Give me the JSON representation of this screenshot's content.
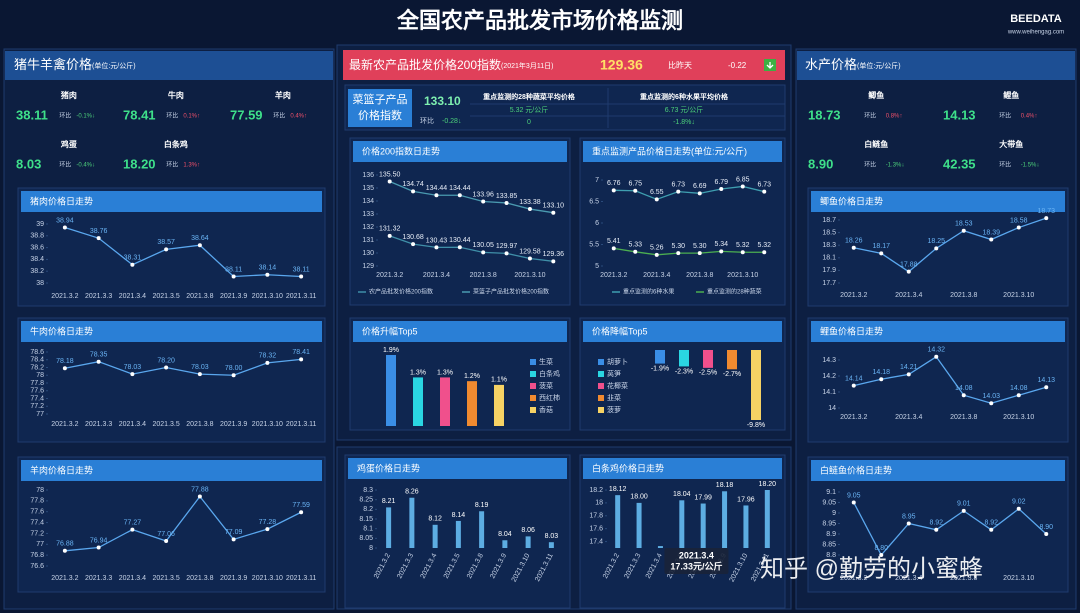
{
  "header": {
    "title": "全国农产品批发市场价格监测",
    "logo": "BEEDATA",
    "url": "www.weihengag.com"
  },
  "left": {
    "title": "猪牛羊禽价格",
    "unit": "(单位:元/公斤)",
    "change_label": "环比",
    "items": [
      {
        "name": "猪肉",
        "value": "38.11",
        "change": "-0.1%↓"
      },
      {
        "name": "牛肉",
        "value": "78.41",
        "change": "0.1%↑"
      },
      {
        "name": "羊肉",
        "value": "77.59",
        "change": "0.4%↑"
      },
      {
        "name": "鸡蛋",
        "value": "8.03",
        "change": "-0.4%↓"
      },
      {
        "name": "白条鸡",
        "value": "18.20",
        "change": "1.3%↑"
      }
    ]
  },
  "center": {
    "title": "最新农产品批发价格200指数",
    "date": "(2021年3月11日)",
    "value": "129.36",
    "compare_label": "比昨天",
    "compare": "-0.22",
    "basket": {
      "label": [
        "菜篮子产品",
        "价格指数"
      ],
      "value": "133.10",
      "change_label": "环比",
      "change": "-0.28↓"
    },
    "veg": {
      "label": "重点监测的28种蔬菜平均价格",
      "value": "5.32 元/公斤",
      "change": "0"
    },
    "fruit": {
      "label": "重点监测的6种水果平均价格",
      "value": "6.73 元/公斤",
      "change": "-1.8%↓"
    }
  },
  "right": {
    "title": "水产价格",
    "unit": "(单位:元/公斤)",
    "change_label": "环比",
    "items": [
      {
        "name": "鲫鱼",
        "value": "18.73",
        "change": "0.8%↑"
      },
      {
        "name": "鲤鱼",
        "value": "14.13",
        "change": "0.4%↑"
      },
      {
        "name": "白鲢鱼",
        "value": "8.90",
        "change": "-1.3%↓"
      },
      {
        "name": "大带鱼",
        "value": "42.35",
        "change": "-1.5%↓"
      }
    ]
  },
  "watermark": "知乎 @勤劳的小蜜蜂",
  "chart_data": [
    {
      "type": "line",
      "title": "猪肉价格日走势",
      "categories": [
        "2021.3.2",
        "2021.3.3",
        "2021.3.4",
        "2021.3.5",
        "2021.3.8",
        "2021.3.9",
        "2021.3.10",
        "2021.3.11"
      ],
      "series": [
        {
          "name": "猪肉",
          "color": "#5aa7ee",
          "values": [
            38.94,
            38.76,
            38.31,
            38.57,
            38.64,
            38.11,
            38.14,
            38.11
          ],
          "value_labels": [
            "38.94",
            "38.76",
            "38.31",
            "38.57",
            "38.64",
            "38.11",
            "38.14",
            "38.11"
          ]
        }
      ],
      "ylim": [
        38,
        39
      ],
      "yticks": [
        38,
        38.2,
        38.4,
        38.6,
        38.8,
        39
      ]
    },
    {
      "type": "line",
      "title": "牛肉价格日走势",
      "categories": [
        "2021.3.2",
        "2021.3.3",
        "2021.3.4",
        "2021.3.5",
        "2021.3.8",
        "2021.3.9",
        "2021.3.10",
        "2021.3.11"
      ],
      "series": [
        {
          "name": "牛肉",
          "color": "#5aa7ee",
          "values": [
            78.18,
            78.35,
            78.03,
            78.2,
            78.03,
            78.0,
            78.32,
            78.41
          ],
          "value_labels": [
            "78.18",
            "78.35",
            "78.03",
            "78.20",
            "78.03",
            "78.00",
            "78.32",
            "78.41"
          ]
        }
      ],
      "ylim": [
        77,
        78.6
      ],
      "yticks": [
        77,
        77.2,
        77.4,
        77.6,
        77.8,
        78,
        78.2,
        78.4,
        78.6
      ]
    },
    {
      "type": "line",
      "title": "羊肉价格日走势",
      "categories": [
        "2021.3.2",
        "2021.3.3",
        "2021.3.4",
        "2021.3.5",
        "2021.3.8",
        "2021.3.9",
        "2021.3.10",
        "2021.3.11"
      ],
      "series": [
        {
          "name": "羊肉",
          "color": "#5aa7ee",
          "values": [
            76.88,
            76.94,
            77.27,
            77.06,
            77.88,
            77.09,
            77.28,
            77.59
          ],
          "value_labels": [
            "76.88",
            "76.94",
            "77.27",
            "77.06",
            "77.88",
            "77.09",
            "77.28",
            "77.59"
          ]
        }
      ],
      "ylim": [
        76.6,
        78
      ],
      "yticks": [
        76.6,
        76.8,
        77,
        77.2,
        77.4,
        77.6,
        77.8,
        78
      ]
    },
    {
      "type": "line",
      "title": "价格200指数日走势",
      "categories": [
        "2021.3.2",
        null,
        "2021.3.4",
        null,
        "2021.3.8",
        null,
        "2021.3.10",
        null
      ],
      "series": [
        {
          "name": "农产品批发价格200指数",
          "color": "#3f8fa8",
          "values": [
            131.32,
            130.68,
            130.43,
            130.44,
            130.05,
            129.97,
            129.58,
            129.36
          ],
          "value_labels": [
            "131.32",
            "130.68",
            "130.43",
            "130.44",
            "130.05",
            "129.97",
            "129.58",
            "129.36"
          ]
        },
        {
          "name": "菜篮子产品批发价格200指数",
          "color": "#4a9ab0",
          "values": [
            135.5,
            134.74,
            134.44,
            134.44,
            133.96,
            133.85,
            133.38,
            133.1
          ],
          "value_labels": [
            "135.50",
            "134.74",
            "134.44",
            "134.44",
            "133.96",
            "133.85",
            "133.38",
            "133.10"
          ]
        }
      ],
      "ylim": [
        129,
        136
      ],
      "yticks": [
        129,
        130,
        131,
        132,
        133,
        134,
        135,
        136
      ]
    },
    {
      "type": "line",
      "title": "重点监测产品价格日走势(单位:元/公斤)",
      "categories": [
        "2021.3.2",
        null,
        "2021.3.4",
        null,
        "2021.3.8",
        null,
        "2021.3.10",
        null
      ],
      "series": [
        {
          "name": "重点监测的6种水果",
          "color": "#3f9fb0",
          "values": [
            6.76,
            6.75,
            6.55,
            6.73,
            6.69,
            6.79,
            6.85,
            6.73
          ],
          "value_labels": [
            "6.76",
            "6.75",
            "6.55",
            "6.73",
            "6.69",
            "6.79",
            "6.85",
            "6.73"
          ]
        },
        {
          "name": "重点监测的28种蔬菜",
          "color": "#4caf50",
          "values": [
            5.41,
            5.33,
            5.26,
            5.3,
            5.3,
            5.34,
            5.32,
            5.32
          ],
          "value_labels": [
            "5.41",
            "5.33",
            "5.26",
            "5.30",
            "5.30",
            "5.34",
            "5.32",
            "5.32"
          ]
        }
      ],
      "ylim": [
        5,
        7
      ],
      "yticks": [
        5,
        5.5,
        6,
        6.5,
        7
      ]
    },
    {
      "type": "bar",
      "title": "价格升幅Top5",
      "categories": [
        "生菜",
        "白条鸡",
        "菠菜",
        "西红柿",
        "香菇"
      ],
      "values": [
        1.9,
        1.3,
        1.3,
        1.2,
        1.1
      ],
      "value_labels": [
        "1.9%",
        "1.3%",
        "1.3%",
        "1.2%",
        "1.1%"
      ],
      "colors": [
        "#3a8ee6",
        "#2ad6e2",
        "#f0508c",
        "#f08a30",
        "#f6d264"
      ]
    },
    {
      "type": "bar",
      "title": "价格降幅Top5",
      "categories": [
        "胡萝卜",
        "莴笋",
        "花椰菜",
        "韭菜",
        "菠萝"
      ],
      "values": [
        -1.9,
        -2.3,
        -2.5,
        -2.7,
        -9.8
      ],
      "value_labels": [
        "-1.9%",
        "-2.3%",
        "-2.5%",
        "-2.7%",
        "-9.8%"
      ],
      "colors": [
        "#3a8ee6",
        "#2ad6e2",
        "#f0508c",
        "#f08a30",
        "#f6d264"
      ]
    },
    {
      "type": "bar",
      "title": "鸡蛋价格日走势",
      "categories": [
        "2021.3.2",
        "2021.3.3",
        "2021.3.4",
        "2021.3.5",
        "2021.3.8",
        "2021.3.9",
        "2021.3.10",
        "2021.3.11"
      ],
      "values": [
        8.21,
        8.26,
        8.12,
        8.14,
        8.19,
        8.04,
        8.06,
        8.03
      ],
      "value_labels": [
        "8.21",
        "8.26",
        "8.12",
        "8.14",
        "8.19",
        "8.04",
        "8.06",
        "8.03"
      ],
      "color": "#5dade2",
      "ylim": [
        8,
        8.3
      ],
      "yticks": [
        8,
        8.05,
        8.1,
        8.15,
        8.2,
        8.25,
        8.3
      ]
    },
    {
      "type": "bar",
      "title": "白条鸡价格日走势",
      "categories": [
        "2021.3.2",
        "2021.3.3",
        "2021.3.4",
        "2021.3.5",
        "2021.3.8",
        "2021.3.9",
        "2021.3.10",
        "2021.3.11"
      ],
      "values": [
        18.12,
        18.0,
        17.33,
        18.04,
        17.99,
        18.18,
        17.96,
        18.2
      ],
      "value_labels": [
        "18.12",
        "18.00",
        null,
        "18.04",
        "17.99",
        "18.18",
        "17.96",
        "18.20"
      ],
      "color": "#5dade2",
      "ylim": [
        17.3,
        18.2
      ],
      "yticks": [
        17.4,
        17.6,
        17.8,
        18,
        18.2
      ],
      "tooltip": {
        "title": "2021.3.4",
        "text": "17.33元/公斤"
      }
    },
    {
      "type": "line",
      "title": "鲫鱼价格日走势",
      "categories": [
        "2021.3.2",
        null,
        "2021.3.4",
        null,
        "2021.3.8",
        null,
        "2021.3.10",
        null
      ],
      "series": [
        {
          "name": "鲫鱼",
          "color": "#5aa7ee",
          "values": [
            18.26,
            18.17,
            17.88,
            18.25,
            18.53,
            18.39,
            18.58,
            18.73
          ],
          "value_labels": [
            "18.26",
            "18.17",
            "17.88",
            "18.25",
            "18.53",
            "18.39",
            "18.58",
            "18.73"
          ]
        }
      ],
      "ylim": [
        17.7,
        18.7
      ],
      "yticks": [
        17.7,
        17.9,
        18.1,
        18.3,
        18.5,
        18.7
      ]
    },
    {
      "type": "line",
      "title": "鲤鱼价格日走势",
      "categories": [
        "2021.3.2",
        null,
        "2021.3.4",
        null,
        "2021.3.8",
        null,
        "2021.3.10",
        null
      ],
      "series": [
        {
          "name": "鲤鱼",
          "color": "#5aa7ee",
          "values": [
            14.14,
            14.18,
            14.21,
            14.32,
            14.08,
            14.03,
            14.08,
            14.13
          ],
          "value_labels": [
            "14.14",
            "14.18",
            "14.21",
            "14.32",
            "14.08",
            "14.03",
            "14.08",
            "14.13"
          ]
        }
      ],
      "ylim": [
        14,
        14.35
      ],
      "yticks": [
        14,
        14.1,
        14.2,
        14.3
      ]
    },
    {
      "type": "line",
      "title": "白鲢鱼价格日走势",
      "categories": [
        "2021.3.2",
        null,
        "2021.3.4",
        null,
        "2021.3.8",
        null,
        "2021.3.10",
        null
      ],
      "series": [
        {
          "name": "白鲢鱼",
          "color": "#5aa7ee",
          "values": [
            9.05,
            8.8,
            8.95,
            8.92,
            9.01,
            8.92,
            9.02,
            8.9
          ],
          "value_labels": [
            "9.05",
            "8.80",
            "8.95",
            "8.92",
            "9.01",
            "8.92",
            "9.02",
            "8.90"
          ]
        }
      ],
      "ylim": [
        8.8,
        9.1
      ],
      "yticks": [
        8.8,
        8.85,
        8.9,
        8.95,
        9,
        9.05,
        9.1
      ]
    }
  ]
}
